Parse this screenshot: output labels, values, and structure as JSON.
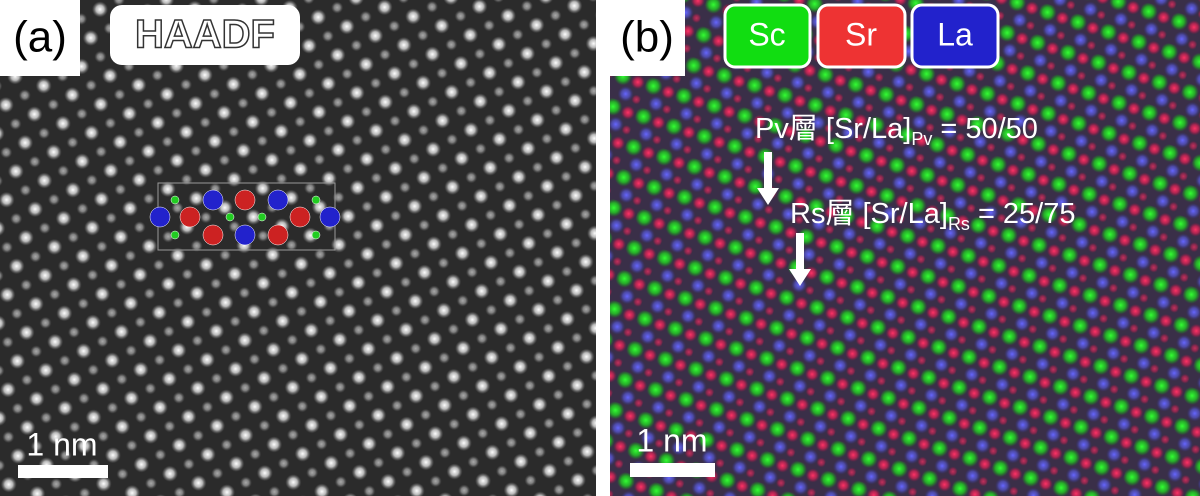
{
  "panel_a": {
    "label": "(a)",
    "mode": "HAADF",
    "scale_bar": "1 nm"
  },
  "panel_b": {
    "label": "(b)",
    "legend": [
      "Sc",
      "Sr",
      "La"
    ],
    "annotations": [
      {
        "layer": "Pv層 [Sr/La]",
        "subscript": "Pv",
        "ratio": "= 50/50"
      },
      {
        "layer": "Rs層 [Sr/La]",
        "subscript": "Rs",
        "ratio": "= 25/75"
      }
    ],
    "scale_bar": "1 nm"
  }
}
